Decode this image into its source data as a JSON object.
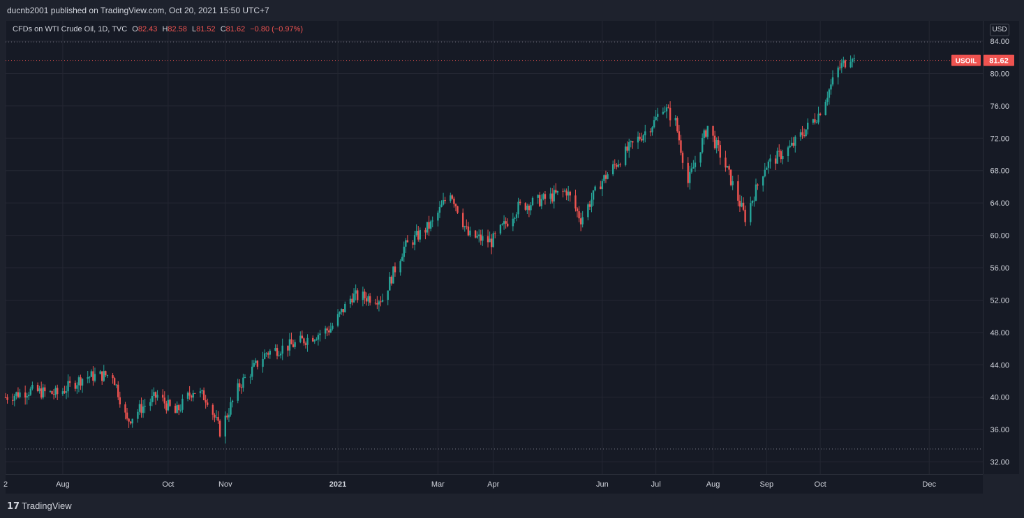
{
  "header": {
    "publisher_text": "ducnb2001 published on TradingView.com, Oct 20, 2021 15:50 UTC+7"
  },
  "legend": {
    "symbol_text": "CFDs on WTI Crude Oil, 1D, TVC",
    "o_label": "O",
    "o_value": "82.43",
    "h_label": "H",
    "h_value": "82.58",
    "l_label": "L",
    "l_value": "81.52",
    "c_label": "C",
    "c_value": "81.62",
    "change": "−0.80 (−0.97%)"
  },
  "currency_button": "USD",
  "price_tag": {
    "symbol": "USOIL",
    "price": "81.62",
    "color": "#ef5350"
  },
  "footer": {
    "brand": "TradingView"
  },
  "colors": {
    "up": "#26a69a",
    "down": "#ef5350",
    "grid": "#242733",
    "text": "#d1d4dc"
  },
  "chart_data": {
    "type": "candlestick",
    "title": "CFDs on WTI Crude Oil, 1D, TVC",
    "ylabel": "USD",
    "yticks": [
      32,
      36,
      40,
      44,
      48,
      52,
      56,
      60,
      64,
      68,
      72,
      76,
      80,
      84
    ],
    "ylim": [
      30.5,
      86.5
    ],
    "x_tick_labels": [
      "2",
      "Aug",
      "Oct",
      "Nov",
      "2021",
      "Mar",
      "Apr",
      "Jun",
      "Jul",
      "Aug",
      "Sep",
      "Oct",
      "Dec"
    ],
    "xlim": [
      "2020-07-02",
      "2021-12-31"
    ],
    "x_tick_dates": [
      "2020-07-02",
      "2020-08-03",
      "2020-10-01",
      "2020-11-02",
      "2021-01-04",
      "2021-03-01",
      "2021-04-01",
      "2021-06-01",
      "2021-07-01",
      "2021-08-02",
      "2021-09-01",
      "2021-10-01",
      "2021-12-01"
    ],
    "reference_lines": {
      "high_line": 83.9,
      "low_line": 33.6,
      "last_price": 81.62
    },
    "grid": true,
    "close_path": [
      [
        "2020-07-02",
        40.0
      ],
      [
        "2020-07-15",
        40.8
      ],
      [
        "2020-07-31",
        40.4
      ],
      [
        "2020-08-15",
        42.5
      ],
      [
        "2020-08-31",
        42.8
      ],
      [
        "2020-09-08",
        37.0
      ],
      [
        "2020-09-15",
        38.5
      ],
      [
        "2020-09-25",
        40.2
      ],
      [
        "2020-10-05",
        38.0
      ],
      [
        "2020-10-15",
        40.9
      ],
      [
        "2020-10-23",
        39.8
      ],
      [
        "2020-10-30",
        35.8
      ],
      [
        "2020-11-10",
        41.5
      ],
      [
        "2020-11-25",
        45.5
      ],
      [
        "2020-12-10",
        46.5
      ],
      [
        "2020-12-31",
        48.5
      ],
      [
        "2021-01-12",
        52.5
      ],
      [
        "2021-01-29",
        52.2
      ],
      [
        "2021-02-10",
        58.5
      ],
      [
        "2021-02-26",
        61.5
      ],
      [
        "2021-03-08",
        65.5
      ],
      [
        "2021-03-18",
        60.0
      ],
      [
        "2021-03-31",
        59.2
      ],
      [
        "2021-04-15",
        63.5
      ],
      [
        "2021-04-30",
        64.5
      ],
      [
        "2021-05-12",
        65.5
      ],
      [
        "2021-05-20",
        62.0
      ],
      [
        "2021-05-31",
        66.5
      ],
      [
        "2021-06-15",
        70.5
      ],
      [
        "2021-06-30",
        74.0
      ],
      [
        "2021-07-05",
        76.0
      ],
      [
        "2021-07-12",
        74.0
      ],
      [
        "2021-07-19",
        66.5
      ],
      [
        "2021-07-30",
        73.5
      ],
      [
        "2021-08-10",
        68.0
      ],
      [
        "2021-08-20",
        62.2
      ],
      [
        "2021-08-31",
        68.5
      ],
      [
        "2021-09-15",
        71.0
      ],
      [
        "2021-09-30",
        75.0
      ],
      [
        "2021-10-11",
        80.5
      ],
      [
        "2021-10-19",
        82.4
      ],
      [
        "2021-10-20",
        81.62
      ]
    ]
  }
}
